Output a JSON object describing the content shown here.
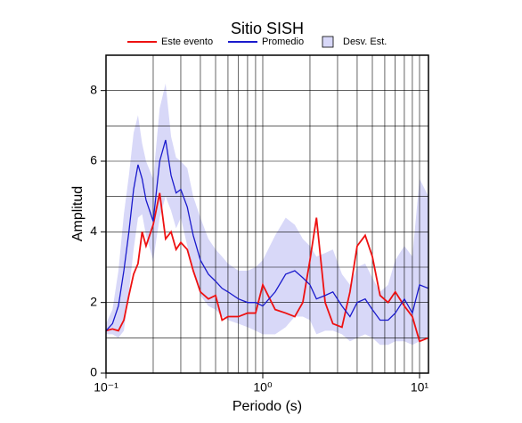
{
  "chart_data": {
    "type": "line",
    "title": "Sitio SISH",
    "x_label": "Periodo (s)",
    "y_label": "Amplitud",
    "log_x": true,
    "grid": true,
    "xlim": [
      0.1,
      11.4
    ],
    "ylim": [
      0,
      9
    ],
    "xticks": [
      {
        "value": 0.1,
        "label": "10⁻¹"
      },
      {
        "value": 1,
        "label": "10⁰"
      },
      {
        "value": 10,
        "label": "10¹"
      }
    ],
    "x_minor_ticks": [
      0.2,
      0.3,
      0.4,
      0.5,
      0.6,
      0.7,
      0.8,
      0.9,
      2,
      3,
      4,
      5,
      6,
      7,
      8,
      9
    ],
    "yticks": [
      0,
      2,
      4,
      6,
      8
    ],
    "y_minor_ticks": [
      1,
      3,
      5,
      7
    ],
    "x": [
      0.1,
      0.11,
      0.12,
      0.13,
      0.14,
      0.15,
      0.16,
      0.17,
      0.18,
      0.2,
      0.22,
      0.24,
      0.26,
      0.28,
      0.3,
      0.33,
      0.36,
      0.4,
      0.45,
      0.5,
      0.55,
      0.6,
      0.7,
      0.8,
      0.9,
      1.0,
      1.2,
      1.4,
      1.6,
      1.8,
      2.0,
      2.2,
      2.5,
      2.8,
      3.2,
      3.6,
      4.0,
      4.5,
      5.0,
      5.6,
      6.3,
      7,
      8,
      9,
      10,
      11.4
    ],
    "series": [
      {
        "name": "Este evento",
        "color": "#ee1111",
        "values": [
          1.2,
          1.25,
          1.2,
          1.5,
          2.2,
          2.8,
          3.1,
          4.0,
          3.6,
          4.2,
          5.1,
          3.8,
          4.0,
          3.5,
          3.7,
          3.5,
          2.9,
          2.3,
          2.1,
          2.2,
          1.5,
          1.6,
          1.6,
          1.7,
          1.7,
          2.5,
          1.8,
          1.7,
          1.6,
          2.0,
          3.2,
          4.4,
          2.0,
          1.4,
          1.3,
          2.3,
          3.6,
          3.9,
          3.3,
          2.2,
          2.0,
          2.3,
          1.9,
          1.6,
          0.9,
          1.0
        ]
      },
      {
        "name": "Promedio",
        "color": "#1a1acc",
        "values": [
          1.2,
          1.4,
          1.9,
          2.9,
          4.0,
          5.2,
          5.9,
          5.5,
          4.9,
          4.3,
          6.0,
          6.6,
          5.6,
          5.1,
          5.2,
          4.7,
          3.9,
          3.2,
          2.8,
          2.6,
          2.4,
          2.3,
          2.1,
          2.0,
          2.0,
          1.9,
          2.3,
          2.8,
          2.9,
          2.7,
          2.5,
          2.1,
          2.2,
          2.3,
          1.9,
          1.6,
          2.0,
          2.1,
          1.8,
          1.5,
          1.5,
          1.7,
          2.1,
          1.7,
          2.5,
          2.4
        ]
      }
    ],
    "band": {
      "name": "Desv. Est.",
      "color": "#d8d8f8",
      "upper": [
        1.4,
        1.8,
        2.9,
        4.5,
        5.6,
        6.8,
        7.3,
        6.5,
        6.0,
        5.5,
        7.5,
        8.2,
        6.7,
        6.1,
        6.0,
        5.8,
        5.0,
        4.4,
        3.8,
        3.5,
        3.3,
        3.1,
        2.9,
        2.9,
        3.0,
        3.2,
        3.9,
        4.4,
        4.2,
        3.8,
        3.6,
        3.3,
        3.4,
        3.5,
        2.8,
        2.5,
        3.0,
        3.1,
        2.7,
        2.3,
        2.5,
        3.2,
        3.6,
        3.3,
        5.5,
        5.0
      ],
      "lower": [
        1.1,
        1.1,
        1.0,
        1.2,
        2.3,
        3.5,
        4.4,
        4.5,
        3.9,
        3.2,
        4.4,
        5.0,
        4.6,
        4.1,
        4.4,
        3.6,
        2.9,
        2.2,
        1.9,
        1.8,
        1.6,
        1.5,
        1.4,
        1.3,
        1.2,
        1.1,
        1.1,
        1.3,
        1.6,
        1.6,
        1.5,
        1.1,
        1.2,
        1.2,
        1.1,
        0.9,
        1.0,
        1.1,
        1.0,
        0.8,
        0.8,
        0.9,
        0.9,
        0.8,
        0.9,
        1.0
      ]
    }
  }
}
